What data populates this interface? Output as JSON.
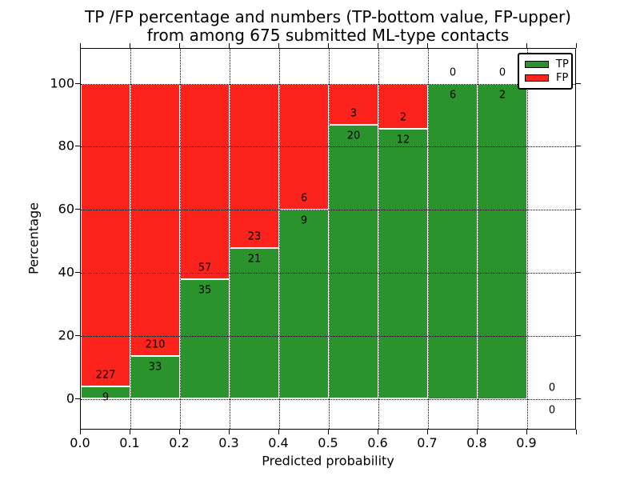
{
  "chart_data": {
    "type": "bar",
    "stacked": true,
    "title_line1": "TP /FP percentage and numbers (TP-bottom value, FP-upper)",
    "title_line2": "from among 675 submitted ML-type contacts",
    "xlabel": "Predicted probability",
    "ylabel": "Percentage",
    "total_contacts": 675,
    "bins": [
      "0.0-0.1",
      "0.1-0.2",
      "0.2-0.3",
      "0.3-0.4",
      "0.4-0.5",
      "0.5-0.6",
      "0.6-0.7",
      "0.7-0.8",
      "0.8-0.9",
      "0.9-1.0"
    ],
    "series": [
      {
        "name": "TP",
        "color": "#2b932b",
        "counts": [
          9,
          33,
          35,
          21,
          9,
          20,
          12,
          6,
          2,
          0
        ]
      },
      {
        "name": "FP",
        "color": "#fb231c",
        "counts": [
          227,
          210,
          57,
          23,
          6,
          3,
          2,
          0,
          0,
          0
        ]
      }
    ],
    "tp_percentages": [
      3.8,
      13.6,
      38.0,
      47.7,
      60.0,
      87.0,
      85.7,
      100.0,
      100.0,
      null
    ],
    "x_ticks": [
      "0.0",
      "0.1",
      "0.2",
      "0.3",
      "0.4",
      "0.5",
      "0.6",
      "0.7",
      "0.8",
      "0.9"
    ],
    "y_ticks": [
      0,
      20,
      40,
      60,
      80,
      100
    ],
    "xlim": [
      0.0,
      1.0
    ],
    "ylim_percent": [
      -10,
      111
    ],
    "grid": "dotted",
    "legend": {
      "position": "upper right",
      "entries": [
        {
          "label": "TP",
          "color": "#2b932b"
        },
        {
          "label": "FP",
          "color": "#fb231c"
        }
      ]
    }
  }
}
